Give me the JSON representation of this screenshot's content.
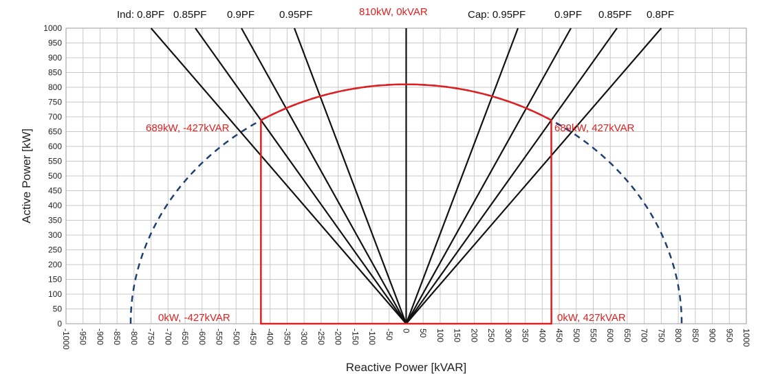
{
  "chart_data": {
    "type": "line",
    "title": "",
    "xlabel": "Reactive Power [kVAR]",
    "ylabel": "Active Power [kW]",
    "xlim": [
      -1000,
      1000
    ],
    "ylim": [
      0,
      1000
    ],
    "x_tick_step": 50,
    "y_tick_step": 50,
    "grid": true,
    "x_ticks": [
      "-1000",
      "-950",
      "-900",
      "-850",
      "-800",
      "-750",
      "-700",
      "-650",
      "-600",
      "-550",
      "-500",
      "-450",
      "-400",
      "-350",
      "-300",
      "-250",
      "-200",
      "-150",
      "-100",
      "-50",
      "0",
      "50",
      "100",
      "150",
      "200",
      "250",
      "300",
      "350",
      "400",
      "450",
      "500",
      "550",
      "600",
      "650",
      "700",
      "750",
      "800",
      "850",
      "900",
      "950",
      "1000"
    ],
    "y_ticks": [
      "0",
      "50",
      "100",
      "150",
      "200",
      "250",
      "300",
      "350",
      "400",
      "450",
      "500",
      "550",
      "600",
      "650",
      "700",
      "750",
      "800",
      "850",
      "900",
      "950",
      "1000"
    ],
    "pf_lines": [
      {
        "label": "Ind: 0.8PF",
        "pf": 0.8,
        "side": -1,
        "color": "#111111"
      },
      {
        "label": "0.85PF",
        "pf": 0.85,
        "side": -1,
        "color": "#111111"
      },
      {
        "label": "0.9PF",
        "pf": 0.9,
        "side": -1,
        "color": "#111111"
      },
      {
        "label": "0.95PF",
        "pf": 0.95,
        "side": -1,
        "color": "#111111"
      },
      {
        "label": "Cap: 0.95PF",
        "pf": 0.95,
        "side": 1,
        "color": "#111111"
      },
      {
        "label": "0.9PF",
        "pf": 0.9,
        "side": 1,
        "color": "#111111"
      },
      {
        "label": "0.85PF",
        "pf": 0.85,
        "side": 1,
        "color": "#111111"
      },
      {
        "label": "0.8PF",
        "pf": 0.8,
        "side": 1,
        "color": "#111111"
      }
    ],
    "unity_line": {
      "label": "810kW, 0kVAR",
      "x": 0,
      "y_from": 0,
      "y_to": 1000,
      "color": "#111111"
    },
    "capability_boundary": {
      "color": "#e02020",
      "points": [
        [
          -427,
          0
        ],
        [
          -427,
          689
        ],
        [
          0,
          810
        ],
        [
          427,
          689
        ],
        [
          427,
          0
        ],
        [
          -427,
          0
        ]
      ],
      "arc_radius_kva": 810
    },
    "apparent_power_circle": {
      "radius": 810,
      "color": "#1f3f6e",
      "style": "dashed"
    },
    "annotations": [
      {
        "text": "689kW, -427kVAR",
        "x": -427,
        "y": 689,
        "color": "#e02020"
      },
      {
        "text": "689kW, 427kVAR",
        "x": 427,
        "y": 689,
        "color": "#e02020"
      },
      {
        "text": "0kW, -427kVAR",
        "x": -427,
        "y": 0,
        "color": "#e02020"
      },
      {
        "text": "0kW, 427kVAR",
        "x": 427,
        "y": 0,
        "color": "#e02020"
      },
      {
        "text": "810kW, 0kVAR",
        "x": 0,
        "y": 810,
        "color": "#e02020"
      }
    ]
  }
}
